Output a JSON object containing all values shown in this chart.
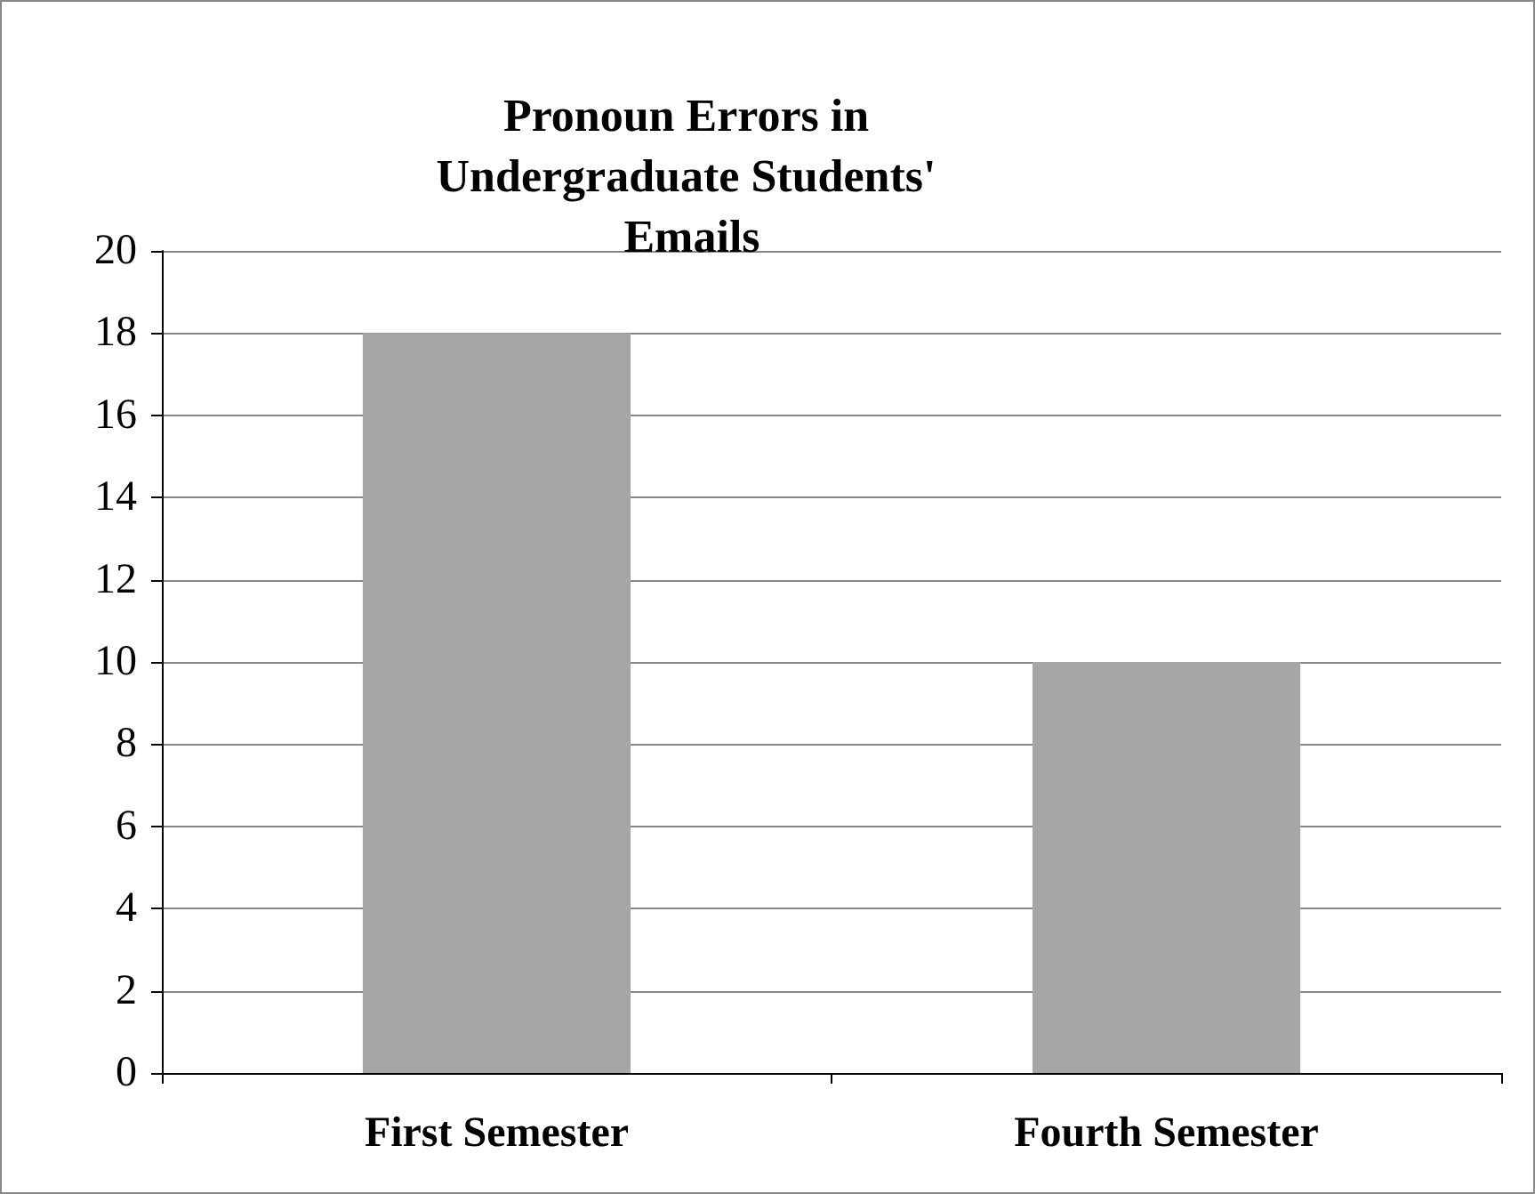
{
  "chart_data": {
    "type": "bar",
    "title": "Pronoun Errors in Undergraduate Students' Emails",
    "categories": [
      "First Semester",
      "Fourth Semester"
    ],
    "values": [
      18,
      10
    ],
    "color": "#a6a6a6",
    "ylim": [
      0,
      20
    ],
    "yticks": [
      0,
      2,
      4,
      6,
      8,
      10,
      12,
      14,
      16,
      18,
      20
    ],
    "grid": "y"
  }
}
